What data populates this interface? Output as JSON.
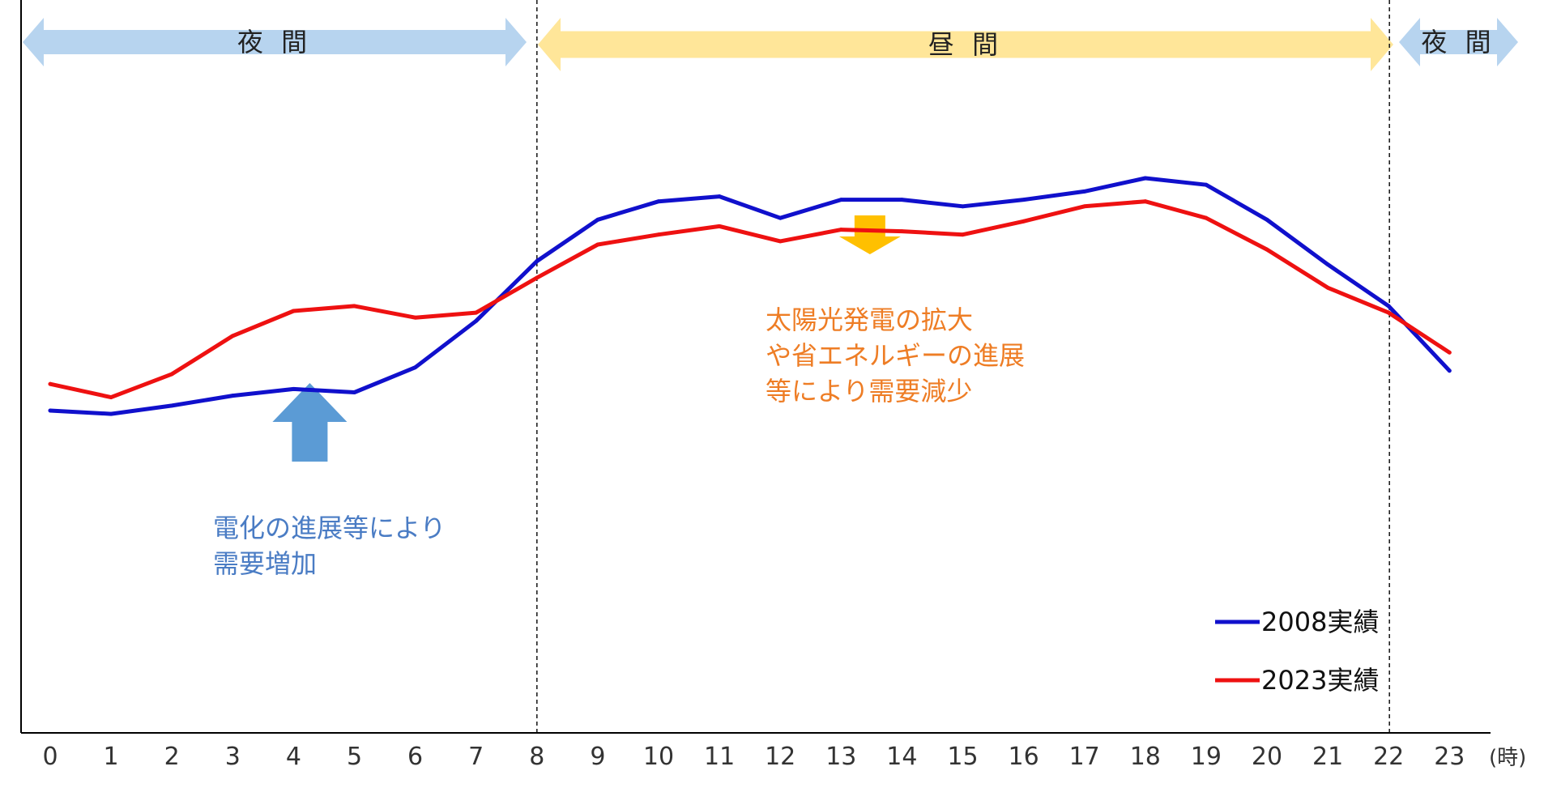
{
  "chart_data": {
    "type": "line",
    "title": "",
    "xlabel": "",
    "ylabel": "",
    "x_unit": "(時)",
    "x": [
      "0",
      "1",
      "2",
      "3",
      "4",
      "5",
      "6",
      "7",
      "8",
      "9",
      "10",
      "11",
      "12",
      "13",
      "14",
      "15",
      "16",
      "17",
      "18",
      "19",
      "20",
      "21",
      "22",
      "23"
    ],
    "ylim": [
      0,
      100
    ],
    "grid": false,
    "legend_position": "bottom-right",
    "series": [
      {
        "name": "2008実績",
        "color": "#1010cc",
        "values": [
          30,
          29,
          31.5,
          34.5,
          36.5,
          35.5,
          43,
          57,
          75,
          87.5,
          93,
          94.5,
          88,
          93.5,
          93.5,
          91.5,
          93.5,
          96,
          100,
          98,
          87.5,
          74,
          61.5,
          42
        ]
      },
      {
        "name": "2023実績",
        "color": "#ee1111",
        "values": [
          38,
          34,
          41,
          52.5,
          60,
          61.5,
          58,
          59.5,
          70,
          80,
          83,
          85.5,
          81,
          84.5,
          84,
          83,
          87,
          91.5,
          93,
          88,
          78.5,
          67,
          59.5,
          47.5
        ]
      }
    ],
    "bands": [
      {
        "label": "夜 間",
        "from": 0,
        "to": 8,
        "color": "#b7d4ef"
      },
      {
        "label": "昼 間",
        "from": 8,
        "to": 22,
        "color": "#ffe699"
      },
      {
        "label": "夜 間",
        "from": 22,
        "to": 24,
        "color": "#b7d4ef"
      }
    ],
    "dividers": [
      8,
      22
    ],
    "annotations": [
      {
        "lines": [
          "電化の進展等により",
          "需要増加"
        ],
        "color": "#4a7cc4",
        "arrow": "up",
        "arrow_color": "#5b9bd5",
        "at_x": 4
      },
      {
        "lines": [
          "太陽光発電の拡大",
          "や省エネルギーの進展",
          "等により需要減少"
        ],
        "color": "#ee7d25",
        "arrow": "down",
        "arrow_color": "#ffc000",
        "at_x": 13.5
      }
    ]
  }
}
